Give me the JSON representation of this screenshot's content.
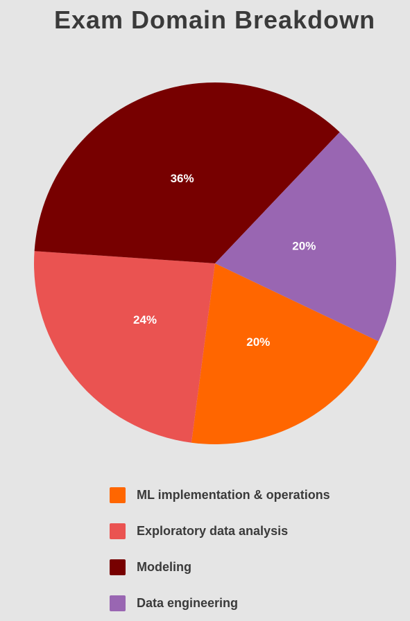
{
  "chart_data": {
    "type": "pie",
    "title": "Exam Domain Breakdown",
    "slices": [
      {
        "name": "ML implementation & operations",
        "value": 20,
        "label": "20%",
        "color": "#ff6600"
      },
      {
        "name": "Exploratory data analysis",
        "value": 24,
        "label": "24%",
        "color": "#ea5351"
      },
      {
        "name": "Modeling",
        "value": 36,
        "label": "36%",
        "color": "#770000"
      },
      {
        "name": "Data engineering",
        "value": 20,
        "label": "20%",
        "color": "#9966b2"
      }
    ],
    "legend_position": "bottom"
  }
}
